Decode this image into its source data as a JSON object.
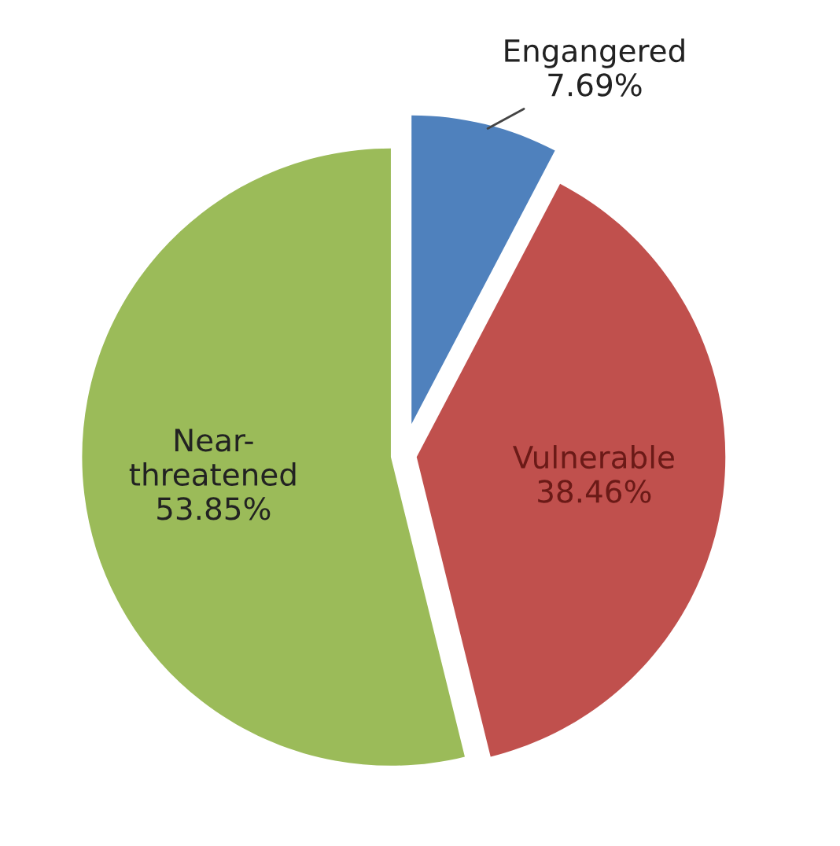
{
  "chart_data": {
    "type": "pie",
    "categories": [
      "Engangered",
      "Vulnerable",
      "Near-\nthreatened"
    ],
    "values": [
      7.69,
      38.46,
      53.85
    ],
    "value_labels": [
      "7.69%",
      "38.46%",
      "53.85%"
    ],
    "colors": [
      "#4f81bd",
      "#c0504d",
      "#9bbb59"
    ],
    "legend": false
  }
}
